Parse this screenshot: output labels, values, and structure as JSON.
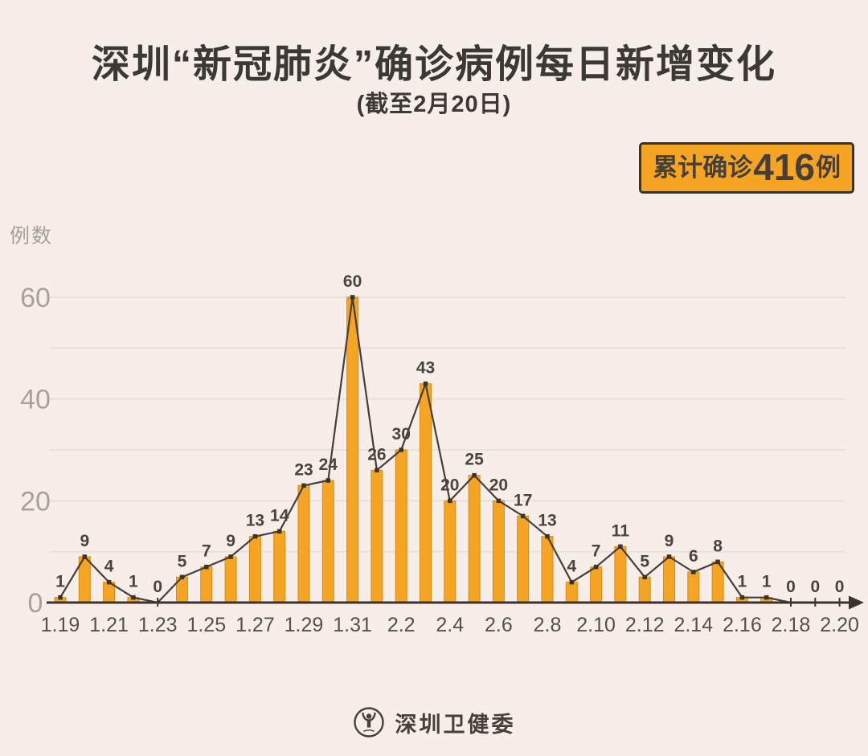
{
  "badge": {
    "prefix": "累计确诊",
    "number": "416",
    "suffix": "例"
  },
  "footer": {
    "org_name": "深圳卫健委"
  },
  "colors": {
    "background": "#f7ede9",
    "bar_fill": "#f6a423",
    "bar_edge": "#d88c10",
    "line": "#453f39",
    "axis": "#39342e",
    "grid": "#e8e0dc",
    "title_text": "#3b3936",
    "value_label_text": "#4a443e",
    "x_tick_text": "#565049",
    "y_tick_text": "#a8a09b",
    "badge_background": "#f6a423",
    "badge_border": "#39342e",
    "footer_text": "#45403b"
  },
  "chart_data": {
    "type": "bar",
    "overlay_line": true,
    "title": "深圳“新冠肺炎”确诊病例每日新增变化",
    "subtitle": "(截至2月20日)",
    "ylabel": "例数",
    "xlabel": "",
    "categories": [
      "1.19",
      "1.20",
      "1.21",
      "1.22",
      "1.23",
      "1.24",
      "1.25",
      "1.26",
      "1.27",
      "1.28",
      "1.29",
      "1.30",
      "1.31",
      "2.1",
      "2.2",
      "2.3",
      "2.4",
      "2.5",
      "2.6",
      "2.7",
      "2.8",
      "2.9",
      "2.10",
      "2.11",
      "2.12",
      "2.13",
      "2.14",
      "2.15",
      "2.16",
      "2.17",
      "2.18",
      "2.19",
      "2.20"
    ],
    "values": [
      1,
      9,
      4,
      1,
      0,
      5,
      7,
      9,
      13,
      14,
      23,
      24,
      60,
      26,
      30,
      43,
      20,
      25,
      20,
      17,
      13,
      4,
      7,
      11,
      5,
      9,
      6,
      8,
      1,
      1,
      0,
      0,
      0
    ],
    "x_tick_labels": [
      "1.19",
      "1.21",
      "1.23",
      "1.25",
      "1.27",
      "1.29",
      "1.31",
      "2.2",
      "2.4",
      "2.6",
      "2.8",
      "2.10",
      "2.12",
      "2.14",
      "2.16",
      "2.18",
      "2.20"
    ],
    "y_tick_labels": [
      0,
      20,
      40,
      60
    ],
    "ylim": [
      0,
      60
    ],
    "grid_interval": 10,
    "grid": true,
    "data_labels": true,
    "legend": false,
    "cumulative_total": 416
  }
}
